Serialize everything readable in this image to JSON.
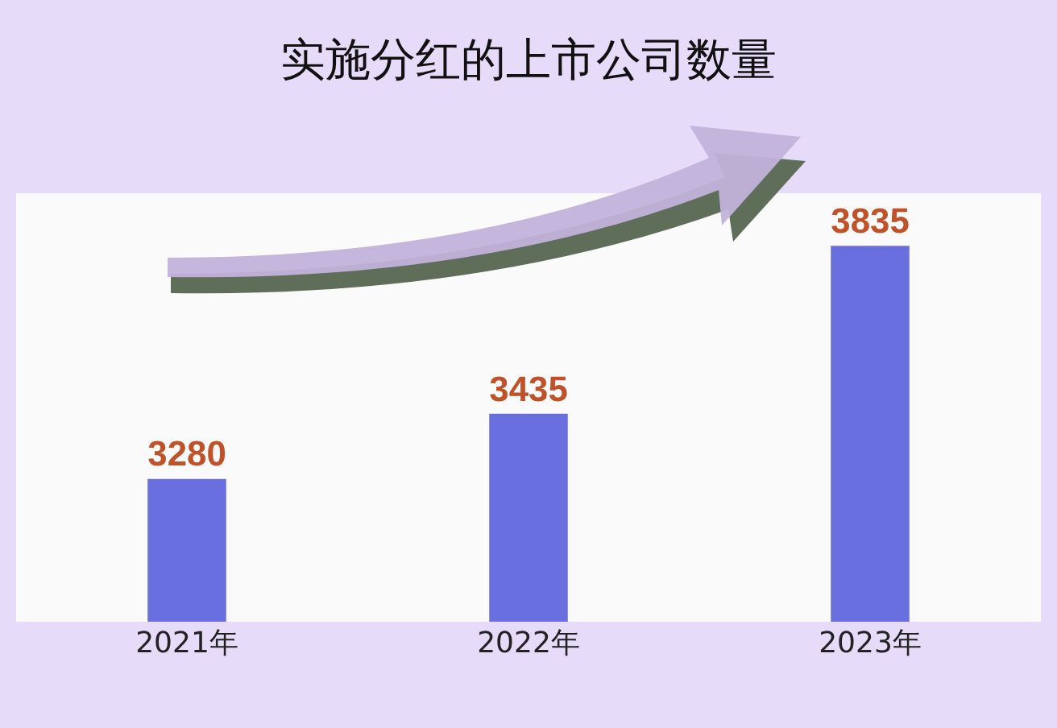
{
  "chart_data": {
    "type": "bar",
    "title": "实施分红的上市公司数量",
    "categories": [
      "2021年",
      "2022年",
      "2023年"
    ],
    "values": [
      3280,
      3435,
      3835
    ],
    "color": "#6a6fe0",
    "ylim": [
      2940,
      3960
    ],
    "tick_labels": "x",
    "data_labels": true,
    "grid": false,
    "legend": false
  }
}
